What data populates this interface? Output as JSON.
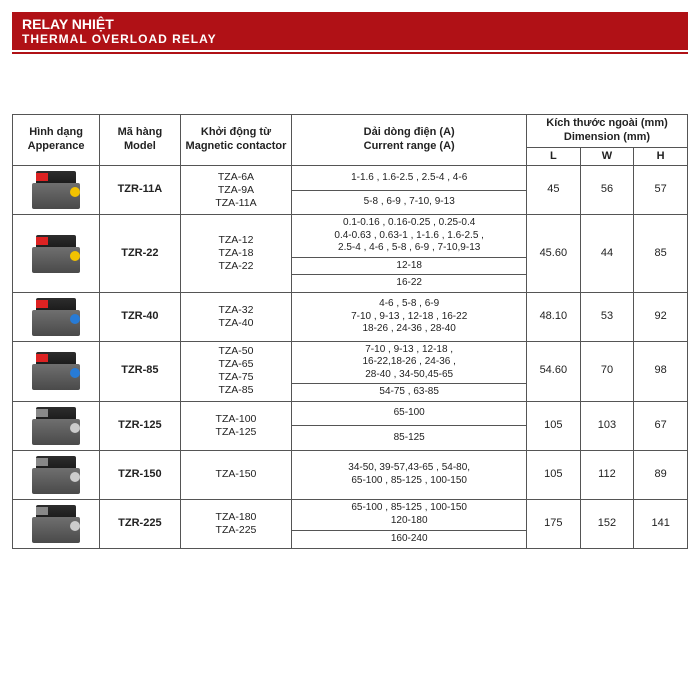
{
  "header": {
    "title_vi": "RELAY NHIỆT",
    "title_en": "THERMAL OVERLOAD RELAY"
  },
  "columns": {
    "appearance_vi": "Hình dạng",
    "appearance_en": "Apperance",
    "model_vi": "Mã hàng",
    "model_en": "Model",
    "magnetic_vi": "Khởi động từ",
    "magnetic_en": "Magnetic contactor",
    "range_vi": "Dải dòng điện (A)",
    "range_en": "Current range (A)",
    "dim_vi": "Kích thước ngoài (mm)",
    "dim_en": "Dimension (mm)",
    "L": "L",
    "W": "W",
    "H": "H"
  },
  "rows": [
    {
      "model": "TZR-11A",
      "contactor": "TZA-6A\nTZA-9A\nTZA-11A",
      "ranges": [
        "1-1.6 , 1.6-2.5 , 2.5-4 , 4-6",
        "5-8 , 6-9 , 7-10, 9-13"
      ],
      "L": "45",
      "W": "56",
      "H": "57",
      "knob": "#f2c200",
      "tag": "#d22"
    },
    {
      "model": "TZR-22",
      "contactor": "TZA-12\nTZA-18\nTZA-22",
      "ranges": [
        "0.1-0.16 , 0.16-0.25 , 0.25-0.4\n0.4-0.63 , 0.63-1 , 1-1.6 , 1.6-2.5 ,\n2.5-4 , 4-6 , 5-8 , 6-9 , 7-10,9-13",
        "12-18",
        "16-22"
      ],
      "L": "45.60",
      "W": "44",
      "H": "85",
      "knob": "#f2c200",
      "tag": "#d22"
    },
    {
      "model": "TZR-40",
      "contactor": "TZA-32\nTZA-40",
      "ranges": [
        "4-6 , 5-8 , 6-9\n7-10 , 9-13 , 12-18 , 16-22\n18-26 , 24-36 , 28-40"
      ],
      "L": "48.10",
      "W": "53",
      "H": "92",
      "knob": "#277bd6",
      "tag": "#d22"
    },
    {
      "model": "TZR-85",
      "contactor": "TZA-50\nTZA-65\nTZA-75\nTZA-85",
      "ranges": [
        "7-10 , 9-13 , 12-18 ,\n16-22,18-26 , 24-36 ,\n28-40 , 34-50,45-65",
        "54-75 , 63-85"
      ],
      "L": "54.60",
      "W": "70",
      "H": "98",
      "knob": "#277bd6",
      "tag": "#d22"
    },
    {
      "model": "TZR-125",
      "contactor": "TZA-100\nTZA-125",
      "ranges": [
        "65-100",
        "85-125"
      ],
      "L": "105",
      "W": "103",
      "H": "67",
      "knob": "#ccc",
      "tag": "#888"
    },
    {
      "model": "TZR-150",
      "contactor": "TZA-150",
      "ranges": [
        "34-50, 39-57,43-65 , 54-80,\n65-100 , 85-125 , 100-150"
      ],
      "L": "105",
      "W": "112",
      "H": "89",
      "knob": "#ccc",
      "tag": "#888"
    },
    {
      "model": "TZR-225",
      "contactor": "TZA-180\nTZA-225",
      "ranges": [
        "65-100 , 85-125 , 100-150\n120-180",
        "160-240"
      ],
      "L": "175",
      "W": "152",
      "H": "141",
      "knob": "#ccc",
      "tag": "#888"
    }
  ],
  "colors": {
    "header_bg": "#b01116",
    "border": "#555555"
  }
}
